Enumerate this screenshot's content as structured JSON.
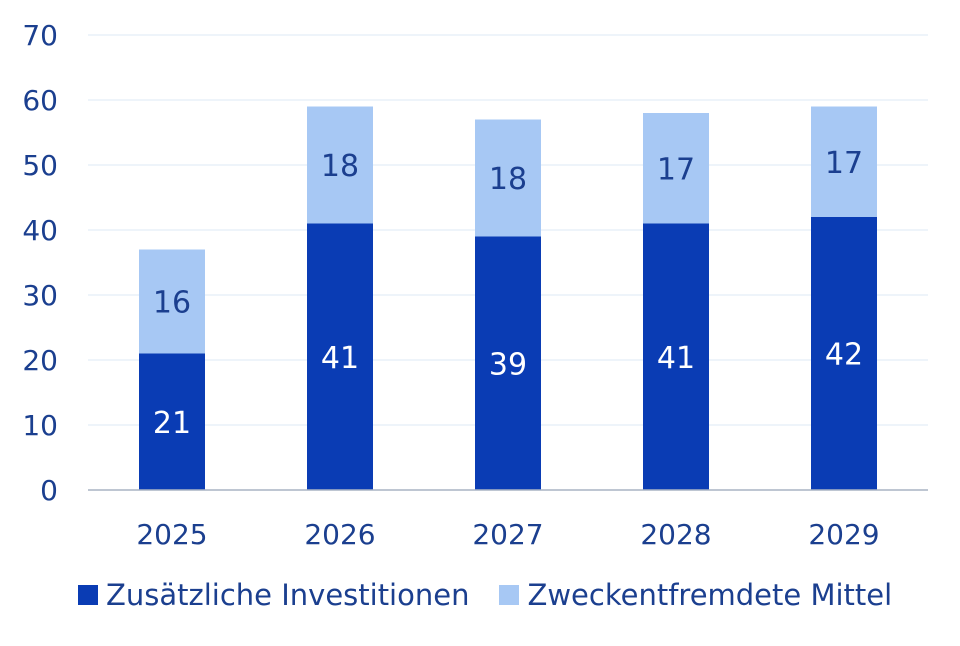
{
  "chart_data": {
    "type": "bar",
    "stacked": true,
    "categories": [
      "2025",
      "2026",
      "2027",
      "2028",
      "2029"
    ],
    "series": [
      {
        "name": "Zusätzliche Investitionen",
        "color": "#0a3cb4",
        "label_color": "#ffffff",
        "values": [
          21,
          41,
          39,
          41,
          42
        ]
      },
      {
        "name": "Zweckentfremdete Mittel",
        "color": "#a7c8f4",
        "label_color": "#1b3f8f",
        "values": [
          16,
          18,
          18,
          17,
          17
        ]
      }
    ],
    "ylim": [
      0,
      70
    ],
    "yticks": [
      "0",
      "10",
      "20",
      "30",
      "40",
      "50",
      "60",
      "70"
    ],
    "grid": true,
    "legend_position": "bottom-left",
    "title": "",
    "xlabel": "",
    "ylabel": ""
  }
}
